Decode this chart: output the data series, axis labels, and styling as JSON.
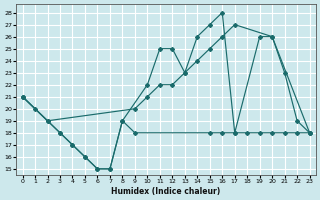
{
  "xlabel": "Humidex (Indice chaleur)",
  "bg_color": "#cde8ec",
  "grid_color": "#ffffff",
  "line_color": "#1a6b6b",
  "xlim": [
    -0.5,
    23.5
  ],
  "ylim": [
    14.5,
    28.7
  ],
  "yticks": [
    15,
    16,
    17,
    18,
    19,
    20,
    21,
    22,
    23,
    24,
    25,
    26,
    27,
    28
  ],
  "xticks": [
    0,
    1,
    2,
    3,
    4,
    5,
    6,
    7,
    8,
    9,
    10,
    11,
    12,
    13,
    14,
    15,
    16,
    17,
    18,
    19,
    20,
    21,
    22,
    23
  ],
  "line1_x": [
    0,
    1,
    2,
    3,
    4,
    5,
    6,
    7,
    8,
    10,
    11,
    12,
    13,
    14,
    15,
    16,
    17,
    19,
    20,
    21,
    22,
    23
  ],
  "line1_y": [
    21,
    20,
    19,
    18,
    17,
    16,
    15,
    15,
    19,
    22,
    25,
    25,
    23,
    26,
    27,
    28,
    18,
    26,
    26,
    23,
    19,
    18
  ],
  "line2_x": [
    0,
    2,
    9,
    10,
    11,
    12,
    13,
    14,
    15,
    16,
    17,
    20,
    23
  ],
  "line2_y": [
    21,
    19,
    20,
    21,
    22,
    22,
    23,
    24,
    25,
    26,
    27,
    26,
    18
  ],
  "line3_x": [
    0,
    3,
    4,
    5,
    6,
    7,
    8,
    9,
    15,
    16,
    17,
    18,
    19,
    20,
    21,
    22,
    23
  ],
  "line3_y": [
    21,
    18,
    17,
    16,
    15,
    15,
    19,
    18,
    18,
    18,
    18,
    18,
    18,
    18,
    18,
    18,
    18
  ]
}
